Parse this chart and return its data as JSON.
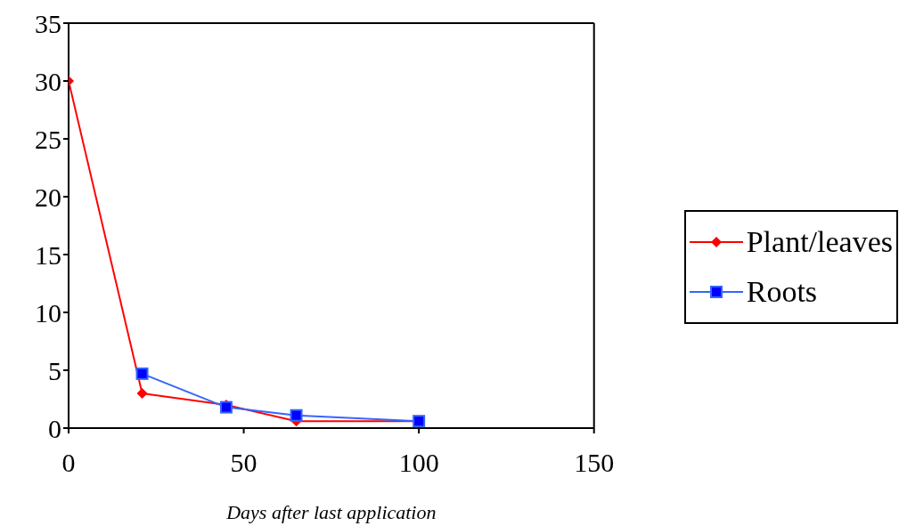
{
  "chart_data": {
    "type": "line",
    "xlabel": "Days after last application",
    "xlim": [
      0,
      150
    ],
    "xticks": [
      0,
      50,
      100,
      150
    ],
    "ylim": [
      0,
      35
    ],
    "yticks": [
      0,
      5,
      10,
      15,
      20,
      25,
      30,
      35
    ],
    "legend": "right",
    "series": [
      {
        "name": "Plant/leaves",
        "color": "#ff0000",
        "marker": "diamond",
        "x": [
          0,
          21,
          45,
          65,
          100
        ],
        "values": [
          30,
          3,
          2,
          0.6,
          0.6
        ]
      },
      {
        "name": "Roots",
        "color": "#3366ff",
        "marker": "square",
        "x": [
          21,
          45,
          65,
          100
        ],
        "values": [
          4.7,
          1.8,
          1.1,
          0.6
        ]
      }
    ]
  }
}
